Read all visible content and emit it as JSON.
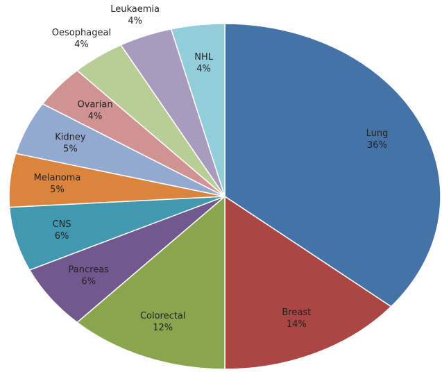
{
  "chart_data": {
    "type": "pie",
    "categories": [
      "Lung",
      "Breast",
      "Colorectal",
      "Pancreas",
      "CNS",
      "Melanoma",
      "Kidney",
      "Ovarian",
      "Oesophageal",
      "Leukaemia",
      "NHL"
    ],
    "values": [
      36,
      14,
      12,
      6,
      6,
      5,
      5,
      4,
      4,
      4,
      4
    ],
    "value_labels": [
      "36%",
      "14%",
      "12%",
      "6%",
      "6%",
      "5%",
      "5%",
      "4%",
      "4%",
      "4%",
      "4%"
    ],
    "colors": [
      "#4572a7",
      "#aa4643",
      "#89a54e",
      "#71588f",
      "#4198af",
      "#db843d",
      "#93a9cf",
      "#d19392",
      "#b9cd96",
      "#a99bbd",
      "#92cddc"
    ]
  }
}
